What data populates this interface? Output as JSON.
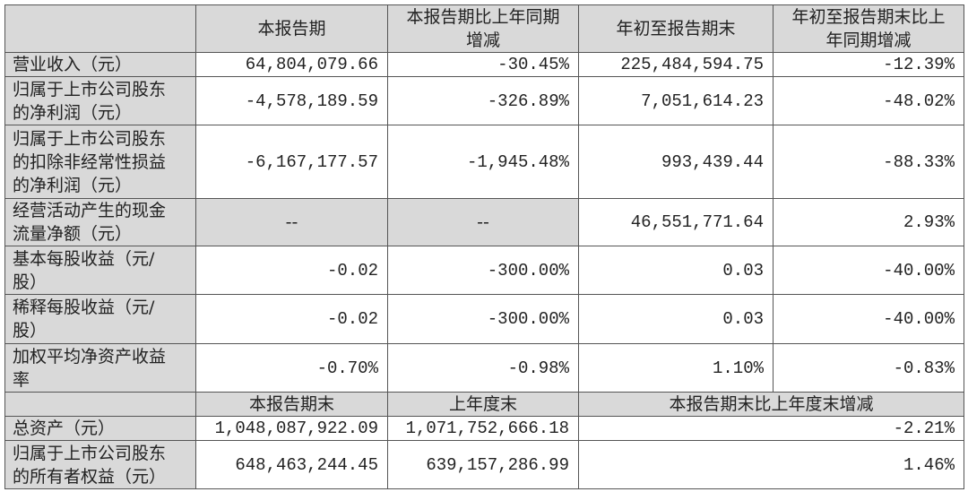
{
  "header": [
    "本报告期",
    "本报告期比上年同期增减",
    "年初至报告期末",
    "年初至报告期末比上年同期增减"
  ],
  "rows": [
    [
      "营业收入（元）",
      "64,804,079.66",
      "-30.45%",
      "225,484,594.75",
      "-12.39%"
    ],
    [
      "归属于上市公司股东的净利润（元）",
      "-4,578,189.59",
      "-326.89%",
      "7,051,614.23",
      "-48.02%"
    ],
    [
      "归属于上市公司股东的扣除非经常性损益的净利润（元）",
      "-6,167,177.57",
      "-1,945.48%",
      "993,439.44",
      "-88.33%"
    ],
    [
      "经营活动产生的现金流量净额（元）",
      "--",
      "--",
      "46,551,771.64",
      "2.93%"
    ],
    [
      "基本每股收益（元/股）",
      "-0.02",
      "-300.00%",
      "0.03",
      "-40.00%"
    ],
    [
      "稀释每股收益（元/股）",
      "-0.02",
      "-300.00%",
      "0.03",
      "-40.00%"
    ],
    [
      "加权平均净资产收益率",
      "-0.70%",
      "-0.98%",
      "1.10%",
      "-0.83%"
    ]
  ],
  "balance_header": [
    "本报告期末",
    "上年度末",
    "本报告期末比上年度末增减"
  ],
  "balance_rows": [
    [
      "总资产（元）",
      "1,048,087,922.09",
      "1,071,752,666.18",
      "-2.21%"
    ],
    [
      "归属于上市公司股东的所有者权益（元）",
      "648,463,244.45",
      "639,157,286.99",
      "1.46%"
    ]
  ]
}
